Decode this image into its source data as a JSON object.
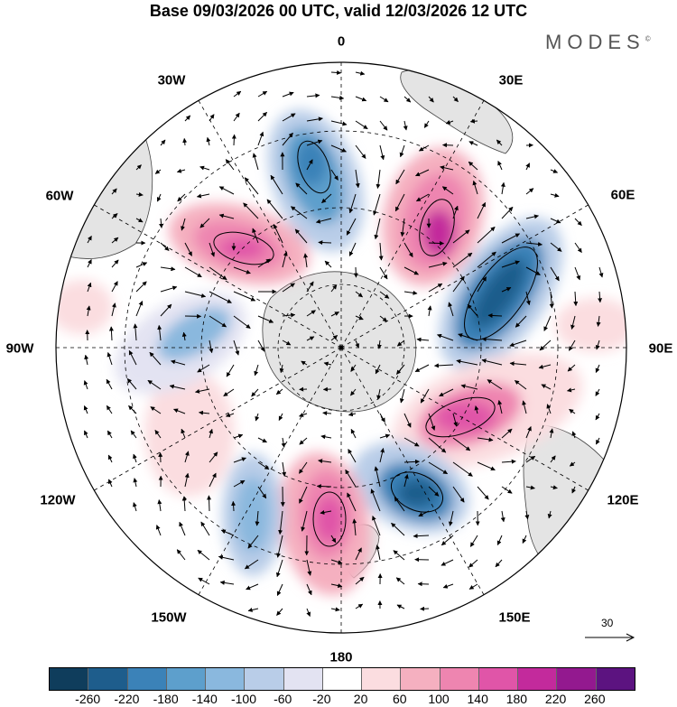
{
  "title": "Base 09/03/2026 00 UTC, valid 12/03/2026 12 UTC",
  "brand": {
    "name": "MODES",
    "mark": "©"
  },
  "longitude_labels": {
    "top": "0",
    "upper_left": "30W",
    "upper_right": "30E",
    "left_upper": "60W",
    "right_upper": "60E",
    "left": "90W",
    "right": "90E",
    "lower_left": "120W",
    "lower_right": "120E",
    "bottom_left": "150W",
    "bottom_right": "150E",
    "bottom": "180"
  },
  "reference_vector": {
    "value": "30"
  },
  "colorbar": {
    "colors": [
      "#0f3d5c",
      "#1e5d8c",
      "#3b82b8",
      "#5d9fcc",
      "#8ab8de",
      "#b9cde8",
      "#e3e3f2",
      "#ffffff",
      "#fbdde0",
      "#f5b0c0",
      "#ee85b0",
      "#e055a8",
      "#c32a9c",
      "#93198f",
      "#5c1380"
    ],
    "ticks": [
      "-260",
      "-220",
      "-180",
      "-140",
      "-100",
      "-60",
      "-20",
      "20",
      "60",
      "100",
      "140",
      "180",
      "220",
      "260"
    ]
  }
}
